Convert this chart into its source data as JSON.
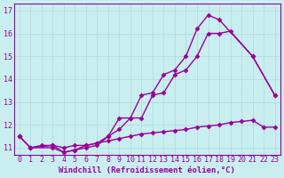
{
  "background_color": "#c8eef0",
  "grid_color": "#b0d8da",
  "line_color": "#990099",
  "marker": "D",
  "marker_size": 2.5,
  "line_width": 1.0,
  "xlim": [
    -0.5,
    23.5
  ],
  "ylim": [
    10.7,
    17.3
  ],
  "xlabel": "Windchill (Refroidissement éolien,°C)",
  "xlabel_fontsize": 6.5,
  "tick_fontsize": 6,
  "tick_color": "#990099",
  "series": [
    {
      "x": [
        0,
        1,
        3,
        4,
        5,
        6,
        7,
        8,
        9,
        10,
        11,
        12,
        13,
        14,
        15,
        16,
        17,
        18,
        21,
        23
      ],
      "y": [
        11.5,
        11.0,
        11.0,
        10.8,
        10.9,
        11.1,
        11.2,
        11.5,
        12.3,
        12.3,
        13.3,
        13.4,
        14.2,
        14.4,
        15.0,
        16.2,
        16.8,
        16.6,
        15.0,
        13.3
      ]
    },
    {
      "x": [
        0,
        1,
        3,
        4,
        5,
        6,
        7,
        8,
        9,
        10,
        11,
        12,
        13,
        14,
        15,
        16,
        17,
        18,
        19,
        21,
        23
      ],
      "y": [
        11.5,
        11.0,
        11.1,
        10.8,
        10.9,
        11.0,
        11.1,
        11.5,
        11.8,
        12.3,
        12.3,
        13.3,
        13.4,
        14.2,
        14.4,
        15.0,
        16.0,
        16.0,
        16.1,
        15.0,
        13.3
      ]
    },
    {
      "x": [
        0,
        1,
        2,
        3,
        4,
        5,
        6,
        7,
        8,
        9,
        10,
        11,
        12,
        13,
        14,
        15,
        16,
        17,
        18,
        19,
        20,
        21,
        22,
        23
      ],
      "y": [
        11.5,
        11.0,
        11.1,
        11.1,
        11.0,
        11.1,
        11.1,
        11.2,
        11.3,
        11.4,
        11.5,
        11.6,
        11.65,
        11.7,
        11.75,
        11.8,
        11.9,
        11.95,
        12.0,
        12.1,
        12.15,
        12.2,
        11.9,
        11.9
      ]
    }
  ],
  "yticks": [
    11,
    12,
    13,
    14,
    15,
    16,
    17
  ],
  "xticks": [
    0,
    1,
    2,
    3,
    4,
    5,
    6,
    7,
    8,
    9,
    10,
    11,
    12,
    13,
    14,
    15,
    16,
    17,
    18,
    19,
    20,
    21,
    22,
    23
  ]
}
